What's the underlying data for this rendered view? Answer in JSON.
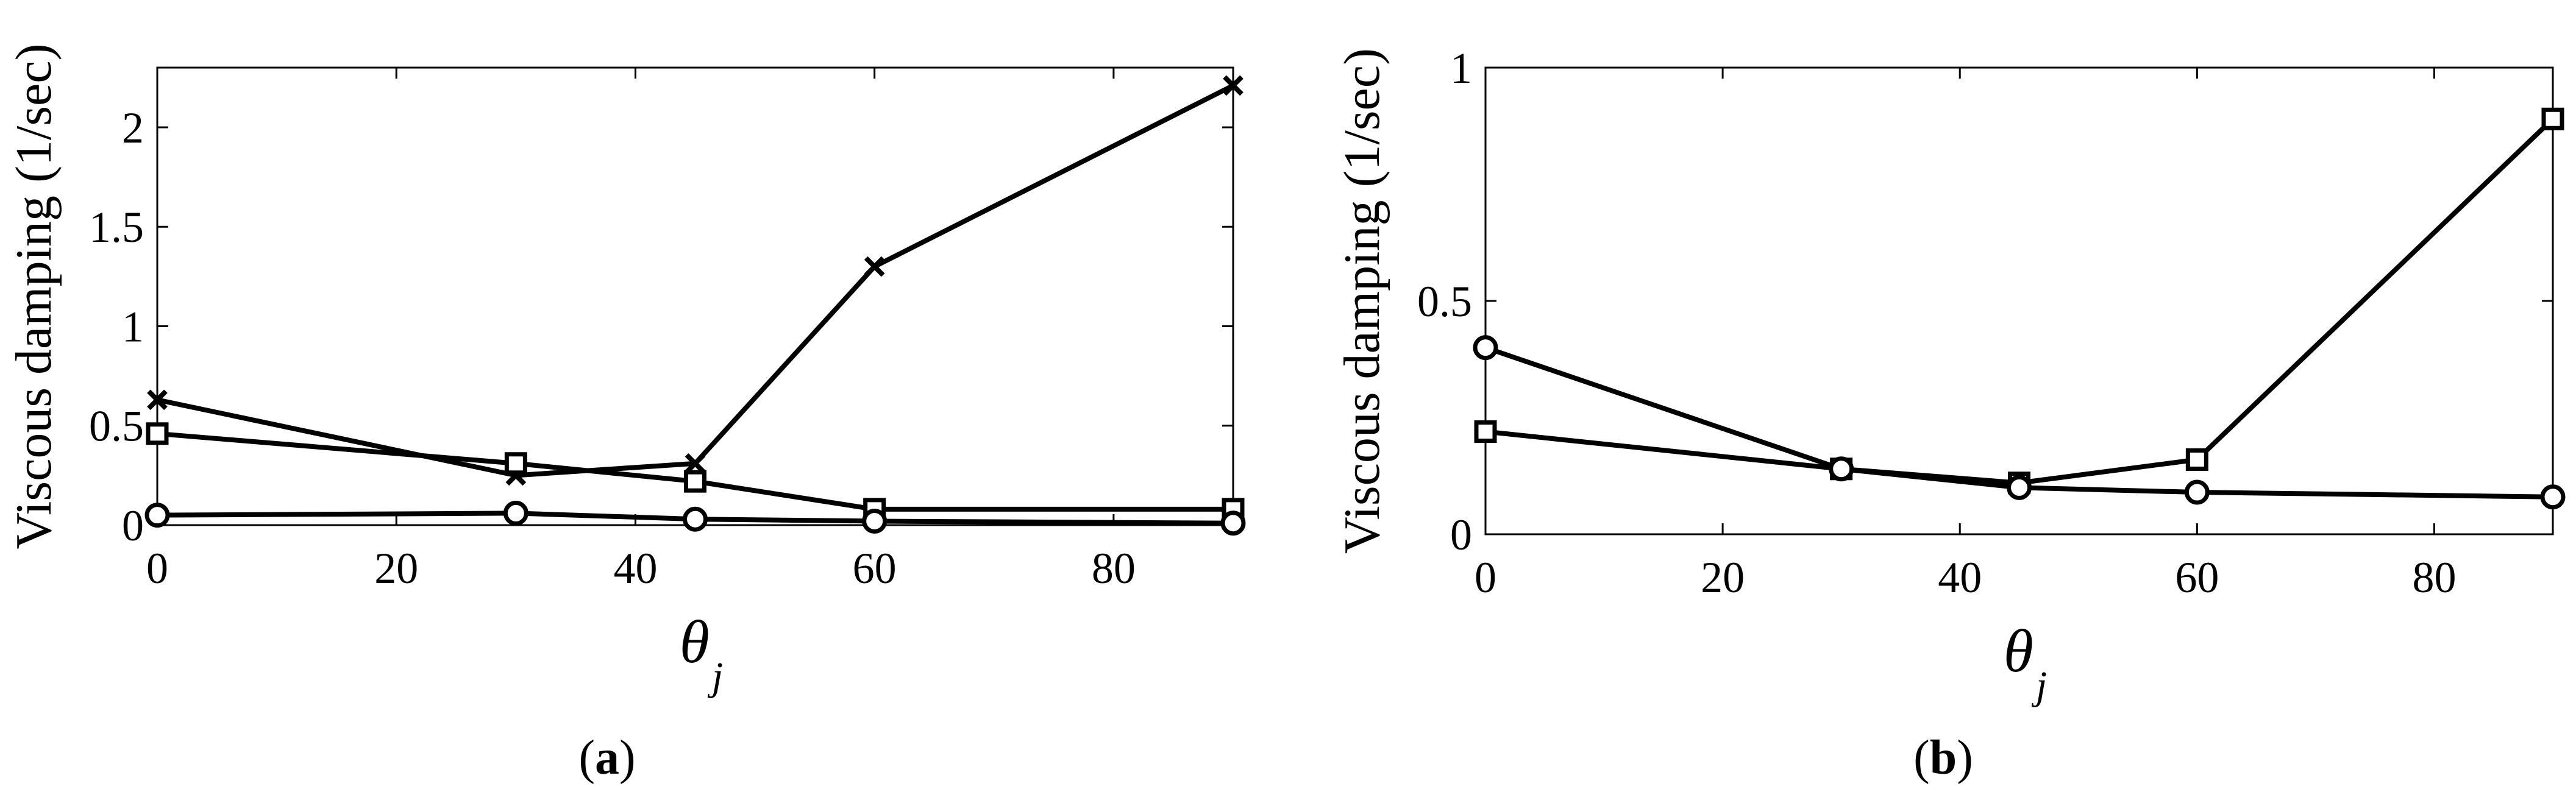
{
  "chart_data": [
    {
      "id": "a",
      "type": "line",
      "caption": "a",
      "ylabel": "Viscous damping (1/sec)",
      "xlabel": "θ",
      "xlabel_subscript": "j",
      "xlim": [
        0,
        90
      ],
      "ylim": [
        0,
        2.3
      ],
      "xticks": [
        0,
        20,
        40,
        60,
        80
      ],
      "xtick_labels": [
        "0",
        "20",
        "40",
        "60",
        "80"
      ],
      "yticks": [
        0,
        0.5,
        1,
        1.5,
        2
      ],
      "ytick_labels": [
        "0",
        "0.5",
        "1",
        "1.5",
        "2"
      ],
      "grid": false,
      "series": [
        {
          "marker": "x",
          "x": [
            0,
            30,
            45,
            60,
            90
          ],
          "y": [
            0.63,
            0.25,
            0.31,
            1.3,
            2.21
          ]
        },
        {
          "marker": "square",
          "x": [
            0,
            30,
            45,
            60,
            90
          ],
          "y": [
            0.46,
            0.31,
            0.22,
            0.08,
            0.08
          ]
        },
        {
          "marker": "circle",
          "x": [
            0,
            30,
            45,
            60,
            90
          ],
          "y": [
            0.05,
            0.06,
            0.03,
            0.02,
            0.01
          ]
        }
      ]
    },
    {
      "id": "b",
      "type": "line",
      "caption": "b",
      "ylabel": "Viscous damping (1/sec)",
      "xlabel": "θ",
      "xlabel_subscript": "j",
      "xlim": [
        0,
        90
      ],
      "ylim": [
        0,
        1
      ],
      "xticks": [
        0,
        20,
        40,
        60,
        80
      ],
      "xtick_labels": [
        "0",
        "20",
        "40",
        "60",
        "80"
      ],
      "yticks": [
        0,
        0.5,
        1
      ],
      "ytick_labels": [
        "0",
        "0.5",
        "1"
      ],
      "grid": false,
      "series": [
        {
          "marker": "square",
          "x": [
            0,
            30,
            45,
            60,
            90
          ],
          "y": [
            0.22,
            0.14,
            0.11,
            0.16,
            0.89
          ]
        },
        {
          "marker": "circle",
          "x": [
            0,
            30,
            45,
            60,
            90
          ],
          "y": [
            0.4,
            0.14,
            0.1,
            0.09,
            0.08
          ]
        }
      ]
    }
  ]
}
